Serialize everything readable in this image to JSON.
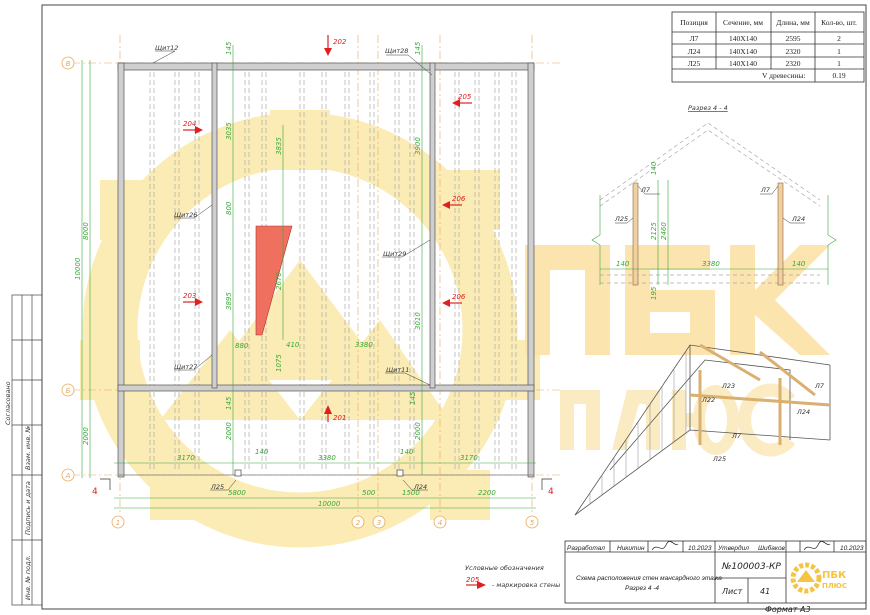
{
  "table": {
    "headers": [
      "Позиция",
      "Сечение, мм",
      "Длина, мм",
      "Кол-во, шт."
    ],
    "rows": [
      [
        "Л7",
        "140Х140",
        "2595",
        "2"
      ],
      [
        "Л24",
        "140Х140",
        "2320",
        "1"
      ],
      [
        "Л25",
        "140Х140",
        "2320",
        "1"
      ]
    ],
    "volume_label": "V древесины:",
    "volume_value": "0.19"
  },
  "plan": {
    "axes_letters": [
      "В",
      "Б",
      "А"
    ],
    "axes_numbers": [
      "1",
      "2",
      "3",
      "4",
      "5"
    ],
    "panels": [
      "Щит12",
      "Щит28",
      "Щит26",
      "Щит27",
      "Щит29",
      "Щит11"
    ],
    "markers": [
      "202",
      "204",
      "203",
      "205",
      "206",
      "206",
      "201"
    ],
    "dims": {
      "left_total": "10000",
      "left_top": "8000",
      "left_bottom": "2000",
      "bottom_5800": "5800",
      "bottom_500": "500",
      "bottom_1500": "1500",
      "bottom_2200": "2200",
      "bottom_total": "10000",
      "inner_3170_l": "3170",
      "inner_3380": "3380",
      "inner_3170_r": "3170",
      "inner_140_l": "140",
      "inner_140_r": "140",
      "v145_a": "145",
      "v145_b": "145",
      "v3035": "3035",
      "v3835": "3835",
      "v3900": "3900",
      "v800": "800",
      "v3895": "3895",
      "v2670": "2670",
      "v880": "880",
      "v410": "410",
      "v1075": "1075",
      "v3010": "3010",
      "v145_c": "145",
      "v145_d": "145",
      "v2000_a": "2000",
      "v2000_b": "2000",
      "h3380": "3380"
    },
    "post_labels": [
      "Л25",
      "Л24"
    ],
    "section_mark": "4"
  },
  "section": {
    "title": "Разрез 4 - 4",
    "labels": [
      "Л7",
      "Л7",
      "Л25",
      "Л24"
    ],
    "dims": [
      "140",
      "3380",
      "140",
      "2125",
      "2460",
      "140",
      "195"
    ]
  },
  "iso_labels": [
    "Л7",
    "Л23",
    "Л22",
    "Л24",
    "Л7",
    "Л25"
  ],
  "legend": {
    "title": "Условные обозначения",
    "marker": "205",
    "text": "- маркировка стены"
  },
  "title_block": {
    "developed_label": "Разработал",
    "developed_name": "Никитин",
    "developed_date": "10.2023",
    "approved_label": "Утвердил",
    "approved_name": "Шибаков",
    "approved_date": "10.2023",
    "description_line1": "Схема расположения стен мансардного этажа",
    "description_line2": "Разрез 4 -4",
    "doc_number": "№100003-КР",
    "sheet_label": "Лист",
    "sheet_number": "41",
    "format": "Формат А3",
    "logo_text_1": "ПБК",
    "logo_text_2": "ПЛЮС"
  },
  "side_stamp": {
    "agreed": "Согласовано",
    "replace_inv": "Взам. инв. №",
    "sign_date": "Подпись и дата",
    "inv_orig": "Инв. № подл."
  },
  "watermark": {
    "line1": "ПБК",
    "line2": "ПЛЮС"
  },
  "colors": {
    "dim": "#3aa83a",
    "marker": "#e02020",
    "axis": "#e8a85a",
    "watermark": "#fbe6a0",
    "wood": "#f0cfa0",
    "logo": "#f4c542"
  }
}
